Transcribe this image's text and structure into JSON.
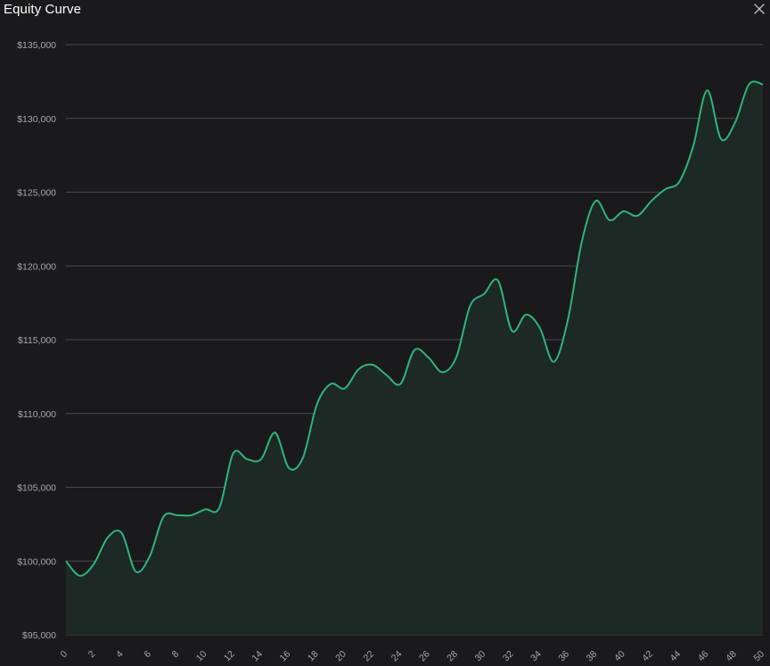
{
  "window": {
    "title": "Equity Curve"
  },
  "icons": {
    "close": "close-icon"
  },
  "colors": {
    "background": "#1a1a1c",
    "line": "#2fb37d",
    "area": "#1d2925",
    "grid": "#4a4a4e",
    "tick_text": "#a8a8ad"
  },
  "chart_data": {
    "type": "area",
    "title": "Equity Curve",
    "xlabel": "",
    "ylabel": "",
    "grid": true,
    "xlim": [
      0,
      50
    ],
    "ylim": [
      95000,
      135000
    ],
    "x_ticks": [
      0,
      2,
      4,
      6,
      8,
      10,
      12,
      14,
      16,
      18,
      20,
      22,
      24,
      26,
      28,
      30,
      32,
      34,
      36,
      38,
      40,
      42,
      44,
      46,
      48,
      50
    ],
    "y_ticks": [
      95000,
      100000,
      105000,
      110000,
      115000,
      120000,
      125000,
      130000,
      135000
    ],
    "y_tick_labels": [
      "$95,000",
      "$100,000",
      "$105,000",
      "$110,000",
      "$115,000",
      "$120,000",
      "$125,000",
      "$130,000",
      "$135,000"
    ],
    "series": [
      {
        "x": [
          0,
          1,
          2,
          3,
          4,
          5,
          6,
          7,
          8,
          9,
          10,
          11,
          12,
          13,
          14,
          15,
          16,
          17,
          18,
          19,
          20,
          21,
          22,
          23,
          24,
          25,
          26,
          27,
          28,
          29,
          30,
          31,
          32,
          33,
          34,
          35,
          36,
          37,
          38,
          39,
          40,
          41,
          42,
          43,
          44,
          45,
          46,
          47,
          48,
          49,
          50
        ],
        "values": [
          100000,
          99000,
          99800,
          101600,
          101900,
          99300,
          100300,
          103000,
          103100,
          103100,
          103500,
          103600,
          107300,
          106900,
          106900,
          108700,
          106300,
          107000,
          110600,
          112000,
          111700,
          113000,
          113300,
          112600,
          112000,
          114300,
          113800,
          112800,
          113800,
          117300,
          118100,
          119000,
          115600,
          116700,
          115800,
          113500,
          116300,
          121600,
          124400,
          123100,
          123700,
          123400,
          124400,
          125200,
          125700,
          128100,
          131900,
          128600,
          129700,
          132300,
          132300
        ]
      }
    ]
  }
}
